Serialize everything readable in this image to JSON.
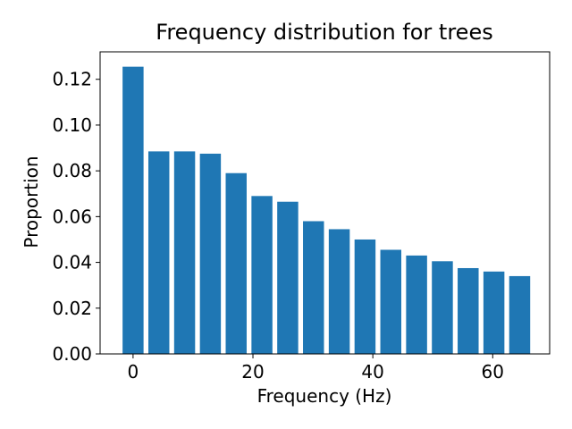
{
  "chart_data": {
    "type": "bar",
    "title": "Frequency distribution for trees",
    "xlabel": "Frequency (Hz)",
    "ylabel": "Proportion",
    "x": [
      0,
      4.3,
      8.6,
      12.9,
      17.2,
      21.5,
      25.8,
      30.1,
      34.4,
      38.7,
      43.0,
      47.3,
      51.6,
      55.9,
      60.2,
      64.5
    ],
    "values": [
      0.1255,
      0.0885,
      0.0885,
      0.0875,
      0.079,
      0.069,
      0.0665,
      0.058,
      0.0545,
      0.05,
      0.0455,
      0.043,
      0.0405,
      0.0375,
      0.036,
      0.034
    ],
    "bar_width": 3.5,
    "xlim": [
      -5.5,
      69.5
    ],
    "ylim": [
      0,
      0.132
    ],
    "xticks": [
      0,
      20,
      40,
      60
    ],
    "xtick_labels": [
      "0",
      "20",
      "40",
      "60"
    ],
    "yticks": [
      0,
      0.02,
      0.04,
      0.06,
      0.08,
      0.1,
      0.12
    ],
    "ytick_labels": [
      "0.00",
      "0.02",
      "0.04",
      "0.06",
      "0.08",
      "0.10",
      "0.12"
    ],
    "grid": false,
    "bar_color": "#1f77b4"
  }
}
